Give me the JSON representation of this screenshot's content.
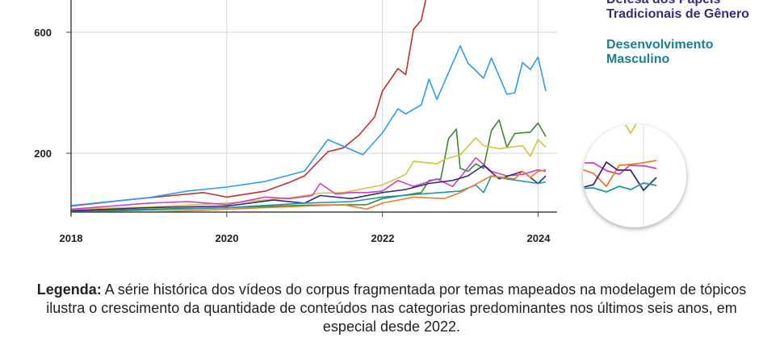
{
  "chart_data": {
    "type": "line",
    "title": "",
    "xlabel": "",
    "ylabel": "",
    "xlim": [
      2018,
      2024.15
    ],
    "ylim": [
      0,
      705
    ],
    "x_ticks": [
      "2018",
      "2020",
      "2022",
      "2024"
    ],
    "y_ticks": [
      "200",
      "600"
    ],
    "grid": true,
    "legend_visible": [
      {
        "name": "Defesa dos Papéis Tradicionais de Gênero",
        "color": "#3a2a7c"
      },
      {
        "name": "Desenvolvimento Masculino",
        "color": "#1a7f8f"
      }
    ],
    "series": [
      {
        "name": "red",
        "color": "#c4302b",
        "x": [
          2018,
          2018.7,
          2019.3,
          2019.7,
          2020,
          2020.5,
          2020.8,
          2021,
          2021.3,
          2021.5,
          2021.7,
          2021.9,
          2022,
          2022.2,
          2022.3,
          2022.4,
          2022.5,
          2022.6
        ],
        "y": [
          25,
          45,
          60,
          70,
          55,
          75,
          103,
          125,
          205,
          218,
          260,
          320,
          405,
          480,
          460,
          610,
          640,
          760
        ]
      },
      {
        "name": "blue",
        "color": "#2a9df4",
        "x": [
          2018,
          2019,
          2019.5,
          2020,
          2020.5,
          2021,
          2021.3,
          2021.75,
          2022,
          2022.2,
          2022.3,
          2022.5,
          2022.6,
          2022.7,
          2023,
          2023.1,
          2023.3,
          2023.4,
          2023.6,
          2023.7,
          2023.8,
          2023.9,
          2024,
          2024.1
        ],
        "y": [
          27,
          53,
          75,
          88,
          107,
          141,
          245,
          195,
          267,
          347,
          330,
          360,
          445,
          378,
          555,
          498,
          448,
          515,
          395,
          400,
          500,
          477,
          518,
          405
        ]
      },
      {
        "name": "green",
        "color": "#3a8a2e",
        "x": [
          2018,
          2019,
          2020,
          2021,
          2021.8,
          2022,
          2022.5,
          2022.6,
          2022.75,
          2022.85,
          2022.95,
          2023,
          2023.1,
          2023.2,
          2023.3,
          2023.4,
          2023.5,
          2023.6,
          2023.7,
          2023.9,
          2024,
          2024.1
        ],
        "y": [
          8,
          15,
          20,
          28,
          30,
          50,
          70,
          110,
          115,
          248,
          280,
          150,
          140,
          165,
          150,
          275,
          310,
          220,
          265,
          270,
          300,
          255
        ]
      },
      {
        "name": "yellow",
        "color": "#d4c43a",
        "x": [
          2018,
          2019,
          2020,
          2020.8,
          2021.2,
          2021.5,
          2021.8,
          2022,
          2022.3,
          2022.4,
          2022.7,
          2022.8,
          2023,
          2023.2,
          2023.3,
          2023.5,
          2023.8,
          2023.9,
          2024,
          2024.1
        ],
        "y": [
          15,
          22,
          35,
          52,
          68,
          70,
          85,
          95,
          130,
          173,
          165,
          180,
          195,
          251,
          225,
          215,
          225,
          190,
          245,
          220
        ]
      },
      {
        "name": "magenta",
        "color": "#cc3fc4",
        "x": [
          2018,
          2019,
          2019.5,
          2020,
          2020.5,
          2020.8,
          2021.1,
          2021.2,
          2021.4,
          2021.6,
          2021.8,
          2022,
          2022.2,
          2022.4,
          2022.7,
          2022.9,
          2023,
          2023.2,
          2023.4,
          2023.6,
          2023.8,
          2024,
          2024.1
        ],
        "y": [
          15,
          35,
          40,
          30,
          55,
          50,
          60,
          100,
          65,
          70,
          70,
          75,
          110,
          90,
          115,
          90,
          120,
          185,
          140,
          125,
          130,
          145,
          140
        ]
      },
      {
        "name": "Defesa dos Papéis Tradicionais de Gênero",
        "color": "#3a2a7c",
        "x": [
          2018,
          2019,
          2020,
          2020.6,
          2021,
          2021.2,
          2021.6,
          2022,
          2022.3,
          2022.6,
          2022.9,
          2023.1,
          2023.3,
          2023.5,
          2023.8,
          2024,
          2024.1
        ],
        "y": [
          10,
          20,
          25,
          45,
          35,
          60,
          50,
          70,
          80,
          100,
          110,
          125,
          160,
          115,
          140,
          100,
          125
        ]
      },
      {
        "name": "Desenvolvimento Masculino",
        "color": "#1a9aa8",
        "x": [
          2018,
          2019,
          2020,
          2021,
          2021.6,
          2022,
          2022.5,
          2023,
          2023.2,
          2023.3,
          2023.4,
          2023.6,
          2024,
          2024.1
        ],
        "y": [
          5,
          12,
          20,
          35,
          40,
          55,
          65,
          75,
          95,
          70,
          125,
          115,
          100,
          105
        ]
      },
      {
        "name": "orange",
        "color": "#f07a2a",
        "x": [
          2018,
          2019,
          2020,
          2021,
          2021.5,
          2021.8,
          2022,
          2022.4,
          2022.8,
          2023,
          2023.4,
          2023.7,
          2023.8,
          2023.9,
          2024,
          2024.1
        ],
        "y": [
          2,
          5,
          15,
          25,
          30,
          15,
          35,
          55,
          50,
          70,
          125,
          115,
          140,
          120,
          140,
          145
        ]
      }
    ]
  },
  "caption": {
    "label": "Legenda:",
    "text": " A série histórica dos vídeos do corpus fragmentada por temas mapeados na modelagem de tópicos ilustra o crescimento da quantidade de conteúdos nas categorias predominantes nos últimos seis anos, em especial desde 2022."
  }
}
